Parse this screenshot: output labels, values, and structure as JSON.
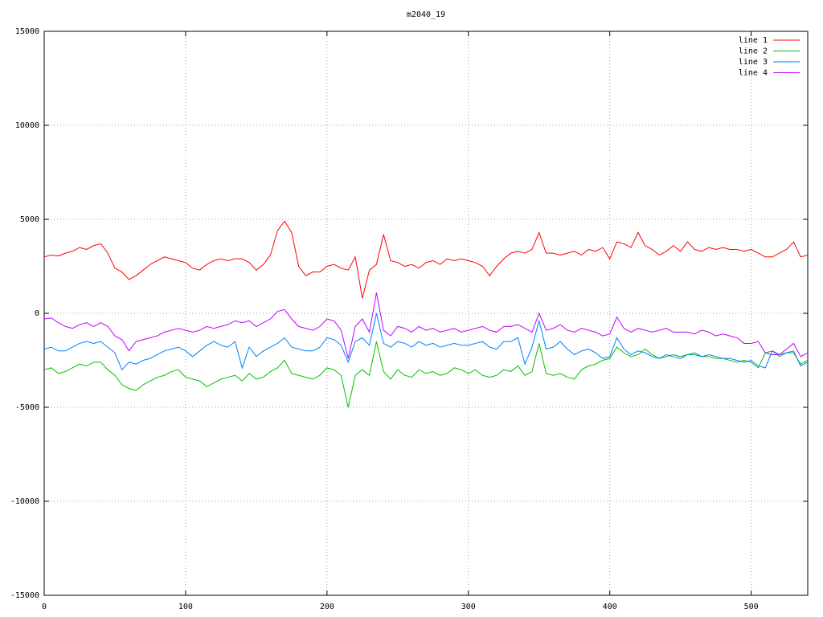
{
  "chart_data": {
    "type": "line",
    "title": "m2040_19",
    "x": [
      0,
      5,
      10,
      15,
      20,
      25,
      30,
      35,
      40,
      45,
      50,
      55,
      60,
      65,
      70,
      75,
      80,
      85,
      90,
      95,
      100,
      105,
      110,
      115,
      120,
      125,
      130,
      135,
      140,
      145,
      150,
      155,
      160,
      165,
      170,
      175,
      180,
      185,
      190,
      195,
      200,
      205,
      210,
      215,
      220,
      225,
      230,
      235,
      240,
      245,
      250,
      255,
      260,
      265,
      270,
      275,
      280,
      285,
      290,
      295,
      300,
      305,
      310,
      315,
      320,
      325,
      330,
      335,
      340,
      345,
      350,
      355,
      360,
      365,
      370,
      375,
      380,
      385,
      390,
      395,
      400,
      405,
      410,
      415,
      420,
      425,
      430,
      435,
      440,
      445,
      450,
      455,
      460,
      465,
      470,
      475,
      480,
      485,
      490,
      495,
      500,
      505,
      510,
      515,
      520,
      525,
      530,
      535,
      540
    ],
    "series": [
      {
        "name": "line 1",
        "color": "#ff0000",
        "values": [
          3000,
          3100,
          3050,
          3200,
          3300,
          3500,
          3400,
          3600,
          3700,
          3200,
          2400,
          2200,
          1800,
          2000,
          2300,
          2600,
          2800,
          3000,
          2900,
          2800,
          2700,
          2400,
          2300,
          2600,
          2800,
          2900,
          2800,
          2900,
          2900,
          2700,
          2300,
          2600,
          3100,
          4400,
          4900,
          4300,
          2500,
          2000,
          2200,
          2200,
          2500,
          2600,
          2400,
          2300,
          3000,
          800,
          2300,
          2600,
          4200,
          2800,
          2700,
          2500,
          2600,
          2400,
          2700,
          2800,
          2600,
          2900,
          2800,
          2900,
          2800,
          2700,
          2500,
          2000,
          2500,
          2900,
          3200,
          3300,
          3200,
          3400,
          4300,
          3200,
          3200,
          3100,
          3200,
          3300,
          3100,
          3400,
          3300,
          3500,
          2900,
          3800,
          3700,
          3500,
          4300,
          3600,
          3400,
          3100,
          3300,
          3600,
          3300,
          3800,
          3400,
          3300,
          3500,
          3400,
          3500,
          3400,
          3400,
          3300,
          3400,
          3200,
          3000,
          3000,
          3200,
          3400,
          3800,
          3000,
          3100
        ]
      },
      {
        "name": "line 2",
        "color": "#00c000",
        "values": [
          -3000,
          -2900,
          -3200,
          -3100,
          -2900,
          -2700,
          -2800,
          -2600,
          -2600,
          -3000,
          -3300,
          -3800,
          -4000,
          -4100,
          -3800,
          -3600,
          -3400,
          -3300,
          -3100,
          -3000,
          -3400,
          -3500,
          -3600,
          -3900,
          -3700,
          -3500,
          -3400,
          -3300,
          -3600,
          -3200,
          -3500,
          -3400,
          -3100,
          -2900,
          -2500,
          -3200,
          -3300,
          -3400,
          -3500,
          -3300,
          -2900,
          -3000,
          -3300,
          -5000,
          -3300,
          -3000,
          -3300,
          -1500,
          -3100,
          -3500,
          -3000,
          -3300,
          -3400,
          -3000,
          -3200,
          -3100,
          -3300,
          -3200,
          -2900,
          -3000,
          -3200,
          -3000,
          -3300,
          -3400,
          -3300,
          -3000,
          -3100,
          -2800,
          -3300,
          -3100,
          -1600,
          -3200,
          -3300,
          -3200,
          -3400,
          -3500,
          -3000,
          -2800,
          -2700,
          -2500,
          -2400,
          -1800,
          -2100,
          -2300,
          -2200,
          -1900,
          -2200,
          -2400,
          -2300,
          -2200,
          -2300,
          -2200,
          -2200,
          -2300,
          -2300,
          -2400,
          -2400,
          -2500,
          -2600,
          -2500,
          -2600,
          -2900,
          -2100,
          -2000,
          -2300,
          -2100,
          -2100,
          -2700,
          -2500
        ]
      },
      {
        "name": "line 3",
        "color": "#0080ff",
        "values": [
          -1900,
          -1800,
          -2000,
          -2000,
          -1800,
          -1600,
          -1500,
          -1600,
          -1500,
          -1800,
          -2100,
          -3000,
          -2600,
          -2700,
          -2500,
          -2400,
          -2200,
          -2000,
          -1900,
          -1800,
          -2000,
          -2300,
          -2000,
          -1700,
          -1500,
          -1700,
          -1800,
          -1500,
          -2900,
          -1800,
          -2300,
          -2000,
          -1800,
          -1600,
          -1300,
          -1800,
          -1900,
          -2000,
          -2000,
          -1800,
          -1300,
          -1400,
          -1700,
          -2600,
          -1500,
          -1300,
          -1700,
          0,
          -1600,
          -1800,
          -1500,
          -1600,
          -1800,
          -1500,
          -1700,
          -1600,
          -1800,
          -1700,
          -1600,
          -1700,
          -1700,
          -1600,
          -1500,
          -1800,
          -1900,
          -1500,
          -1500,
          -1300,
          -2700,
          -1800,
          -400,
          -1900,
          -1800,
          -1500,
          -1900,
          -2200,
          -2000,
          -1900,
          -2100,
          -2400,
          -2300,
          -1300,
          -1900,
          -2200,
          -2000,
          -2100,
          -2300,
          -2400,
          -2200,
          -2300,
          -2400,
          -2200,
          -2100,
          -2300,
          -2200,
          -2300,
          -2400,
          -2400,
          -2500,
          -2600,
          -2500,
          -2800,
          -2900,
          -2000,
          -2200,
          -2100,
          -2000,
          -2800,
          -2600
        ]
      },
      {
        "name": "line 4",
        "color": "#c000ff",
        "values": [
          -300,
          -250,
          -500,
          -700,
          -800,
          -600,
          -500,
          -700,
          -500,
          -700,
          -1200,
          -1400,
          -2000,
          -1500,
          -1400,
          -1300,
          -1200,
          -1000,
          -900,
          -800,
          -900,
          -1000,
          -900,
          -700,
          -800,
          -700,
          -600,
          -400,
          -500,
          -400,
          -700,
          -500,
          -300,
          100,
          200,
          -300,
          -700,
          -800,
          -900,
          -700,
          -300,
          -400,
          -900,
          -2400,
          -700,
          -300,
          -1000,
          1100,
          -900,
          -1200,
          -700,
          -800,
          -1000,
          -700,
          -900,
          -800,
          -1000,
          -900,
          -800,
          -1000,
          -900,
          -800,
          -700,
          -900,
          -1000,
          -700,
          -700,
          -600,
          -800,
          -1000,
          0,
          -900,
          -800,
          -600,
          -900,
          -1000,
          -800,
          -900,
          -1000,
          -1200,
          -1100,
          -200,
          -800,
          -1000,
          -800,
          -900,
          -1000,
          -900,
          -800,
          -1000,
          -1000,
          -1000,
          -1100,
          -900,
          -1000,
          -1200,
          -1100,
          -1200,
          -1300,
          -1600,
          -1600,
          -1500,
          -2100,
          -2200,
          -2200,
          -1900,
          -1600,
          -2300,
          -2100
        ]
      }
    ],
    "xlim": [
      0,
      540
    ],
    "xticks": [
      0,
      100,
      200,
      300,
      400,
      500
    ],
    "ylim": [
      -15000,
      15000
    ],
    "yticks": [
      -15000,
      -10000,
      -5000,
      0,
      5000,
      10000,
      15000
    ],
    "grid": true,
    "legend": "top-right"
  }
}
